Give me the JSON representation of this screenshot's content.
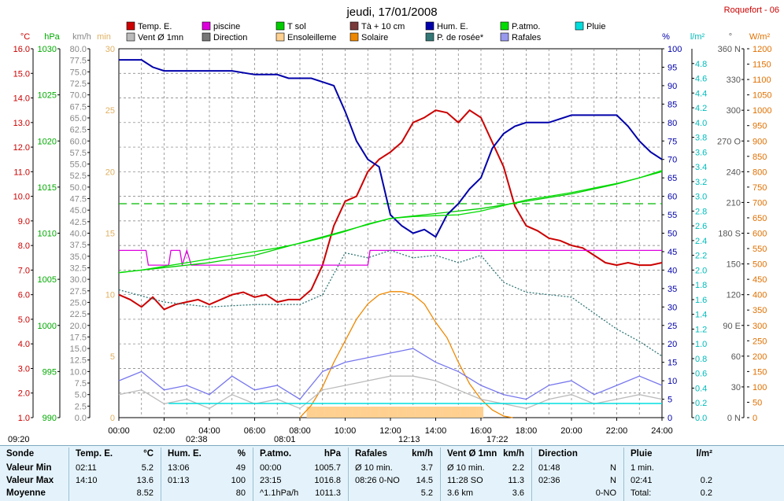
{
  "header": {
    "title": "jeudi, 17/01/2008",
    "station": "Roquefort - 06"
  },
  "axes": {
    "temp": {
      "label": "°C",
      "min": 1,
      "max": 16,
      "step": 1,
      "color": "#cc0000"
    },
    "pressure": {
      "label": "hPa",
      "min": 990,
      "max": 1030,
      "step": 5,
      "color": "#00aa00"
    },
    "wind": {
      "label": "km/h",
      "min": 0,
      "max": 80,
      "step": 2.5,
      "color": "#888888"
    },
    "sun_min": {
      "label": "min",
      "min": 0,
      "max": 30,
      "step": 5,
      "color": "#e0b060"
    },
    "humidity": {
      "label": "%",
      "min": 0,
      "max": 100,
      "step": 5,
      "color": "#0000aa"
    },
    "rain": {
      "label": "l/m²",
      "min": 0,
      "max": 5.0,
      "step": 0.2,
      "color": "#00bbbb"
    },
    "direction": {
      "label": "°",
      "ticks": [
        "0 N",
        "30",
        "60",
        "90 E",
        "120",
        "150",
        "180 S",
        "210",
        "240",
        "270 O",
        "300",
        "330",
        "360 N"
      ]
    },
    "radiation": {
      "label": "W/m²",
      "min": 0,
      "max": 1200,
      "step": 50,
      "color": "#e07000"
    },
    "time": {
      "ticks": [
        "00:00",
        "02:00",
        "04:00",
        "06:00",
        "08:00",
        "10:00",
        "12:00",
        "14:00",
        "16:00",
        "18:00",
        "20:00",
        "22:00",
        "24:00"
      ]
    }
  },
  "legend": [
    {
      "label": "Temp. E.",
      "color": "#cc0000"
    },
    {
      "label": "piscine",
      "color": "#dd00dd"
    },
    {
      "label": "T sol",
      "color": "#00cc00"
    },
    {
      "label": "Tà + 10 cm",
      "color": "#7a3a3a"
    },
    {
      "label": "Hum. E.",
      "color": "#0000aa"
    },
    {
      "label": "P.atmo.",
      "color": "#00dd00"
    },
    {
      "label": "Pluie",
      "color": "#00dddd"
    },
    {
      "label": "Vent Ø 1mn",
      "color": "#bbbbbb"
    },
    {
      "label": "Direction",
      "color": "#777777"
    },
    {
      "label": "Ensoleilleme",
      "color": "#ffd090"
    },
    {
      "label": "Solaire",
      "color": "#ee8800"
    },
    {
      "label": "P. de rosée*",
      "color": "#337777"
    },
    {
      "label": "Rafales",
      "color": "#9999ee"
    }
  ],
  "sun_events": {
    "sunrise": "08:01",
    "noon": "12:13",
    "sunset": "17:22",
    "daylight": "09:20",
    "moonrise": "02:38"
  },
  "chart_data": {
    "type": "line",
    "x_unit": "hours",
    "series": [
      {
        "name": "Temp. E.",
        "axis": "temp",
        "color": "#cc0000",
        "x": [
          0,
          0.5,
          1,
          1.5,
          2,
          2.5,
          3,
          3.5,
          4,
          4.5,
          5,
          5.5,
          6,
          6.5,
          7,
          7.5,
          8,
          8.5,
          9,
          9.5,
          10,
          10.5,
          11,
          11.5,
          12,
          12.5,
          13,
          13.5,
          14,
          14.5,
          15,
          15.5,
          16,
          16.5,
          17,
          17.5,
          18,
          18.5,
          19,
          19.5,
          20,
          20.5,
          21,
          21.5,
          22,
          22.5,
          23,
          23.5,
          24
        ],
        "y": [
          6.0,
          5.8,
          5.5,
          5.9,
          5.4,
          5.6,
          5.7,
          5.8,
          5.6,
          5.8,
          6.0,
          6.1,
          5.9,
          6.0,
          5.7,
          5.8,
          5.8,
          6.2,
          7.2,
          8.8,
          9.8,
          10.0,
          11.0,
          11.5,
          11.8,
          12.2,
          13.0,
          13.2,
          13.5,
          13.4,
          13.0,
          13.5,
          13.2,
          12.2,
          11.2,
          9.6,
          8.8,
          8.6,
          8.3,
          8.2,
          8.0,
          7.9,
          7.6,
          7.3,
          7.2,
          7.3,
          7.2,
          7.2,
          7.3
        ]
      },
      {
        "name": "piscine",
        "axis": "temp",
        "color": "#dd00dd",
        "x": [
          0,
          1,
          1.2,
          1.3,
          2.2,
          2.3,
          2.7,
          2.8,
          3.0,
          3.2,
          11,
          11.1,
          24
        ],
        "y": [
          7.8,
          7.8,
          7.8,
          7.2,
          7.2,
          7.8,
          7.8,
          7.2,
          7.8,
          7.2,
          7.2,
          7.8,
          7.8
        ]
      },
      {
        "name": "T sol",
        "axis": "temp",
        "color": "#00cc00",
        "x": [
          0,
          2,
          4,
          6,
          8,
          10,
          12,
          14,
          16,
          18,
          20,
          22,
          24
        ],
        "y": [
          6.9,
          7.1,
          7.3,
          7.6,
          8.1,
          8.6,
          9.1,
          9.3,
          9.5,
          9.8,
          10.1,
          10.5,
          11.0
        ]
      },
      {
        "name": "Hum. E.",
        "axis": "humidity",
        "color": "#0000aa",
        "x": [
          0,
          1,
          1.5,
          2,
          3,
          4,
          5,
          6,
          7,
          7.5,
          8,
          8.5,
          9,
          9.5,
          10,
          10.5,
          11,
          11.5,
          12,
          12.5,
          13,
          13.5,
          14,
          14.5,
          15,
          15.5,
          16,
          16.5,
          17,
          17.5,
          18,
          19,
          20,
          21,
          22,
          22.5,
          23,
          23.5,
          24
        ],
        "y": [
          97,
          97,
          95,
          94,
          94,
          94,
          94,
          93,
          93,
          92,
          92,
          92,
          91,
          90,
          83,
          75,
          70,
          68,
          55,
          52,
          50,
          51,
          49,
          55,
          58,
          62,
          65,
          73,
          77,
          79,
          80,
          80,
          82,
          82,
          82,
          79,
          75,
          72,
          70
        ]
      },
      {
        "name": "P.atmo.",
        "axis": "pressure",
        "color": "#00dd00",
        "x": [
          0,
          1,
          2,
          3,
          4,
          5,
          6,
          7,
          8,
          9,
          10,
          11,
          12,
          13,
          14,
          15,
          16,
          17,
          18,
          19,
          20,
          21,
          22,
          23,
          24
        ],
        "y": [
          1005.7,
          1006.0,
          1006.4,
          1006.8,
          1007.2,
          1007.6,
          1008.0,
          1008.4,
          1008.9,
          1009.5,
          1010.2,
          1011.0,
          1011.6,
          1011.8,
          1011.9,
          1012.0,
          1012.4,
          1013.0,
          1013.6,
          1014.0,
          1014.4,
          1014.9,
          1015.4,
          1016.0,
          1016.8
        ]
      },
      {
        "name": "Solaire",
        "axis": "radiation",
        "color": "#ee8800",
        "x": [
          8,
          8.5,
          9,
          9.5,
          10,
          10.5,
          11,
          11.5,
          12,
          12.5,
          13,
          13.5,
          14,
          14.5,
          15,
          15.5,
          16,
          16.5,
          17,
          17.4
        ],
        "y": [
          0,
          40,
          100,
          180,
          250,
          320,
          370,
          400,
          410,
          410,
          400,
          370,
          310,
          260,
          180,
          110,
          60,
          25,
          5,
          0
        ]
      },
      {
        "name": "Vent Ø 1mn",
        "axis": "wind",
        "color": "#bbbbbb",
        "x": [
          0,
          1,
          2,
          3,
          4,
          5,
          6,
          7,
          8,
          9,
          10,
          11,
          12,
          13,
          14,
          15,
          16,
          17,
          18,
          19,
          20,
          21,
          22,
          23,
          24
        ],
        "y": [
          5,
          6,
          3,
          4,
          2,
          5,
          3,
          4,
          2,
          6,
          7,
          8,
          9,
          9,
          8,
          6,
          4,
          3,
          2,
          4,
          5,
          3,
          4,
          5,
          4
        ]
      },
      {
        "name": "Rafales",
        "axis": "wind",
        "color": "#7777ee",
        "x": [
          0,
          1,
          2,
          3,
          4,
          5,
          6,
          7,
          8,
          9,
          10,
          11,
          12,
          13,
          14,
          15,
          16,
          17,
          18,
          19,
          20,
          21,
          22,
          23,
          24
        ],
        "y": [
          8,
          10,
          6,
          7,
          5,
          9,
          6,
          7,
          4,
          10,
          12,
          13,
          14,
          15,
          12,
          10,
          7,
          5,
          4,
          7,
          8,
          5,
          7,
          9,
          7
        ]
      },
      {
        "name": "P. de rosée*",
        "axis": "temp",
        "color": "#337777",
        "x": [
          0,
          2,
          4,
          6,
          8,
          9,
          10,
          11,
          12,
          13,
          14,
          15,
          16,
          17,
          18,
          20,
          22,
          23,
          24
        ],
        "y": [
          6.2,
          5.7,
          5.5,
          5.6,
          5.6,
          6.0,
          7.7,
          7.5,
          7.8,
          7.5,
          7.6,
          7.3,
          7.6,
          6.5,
          6.1,
          5.9,
          4.6,
          4.1,
          3.5
        ]
      }
    ]
  },
  "summary": {
    "columns": [
      {
        "title": "Sonde",
        "unit": ""
      },
      {
        "title": "Temp. E.",
        "unit": "°C"
      },
      {
        "title": "Hum. E.",
        "unit": "%"
      },
      {
        "title": "P.atmo.",
        "unit": "hPa"
      },
      {
        "title": "Rafales",
        "unit": "km/h"
      },
      {
        "title": "Vent Ø 1mn",
        "unit": "km/h"
      },
      {
        "title": "Direction",
        "unit": ""
      },
      {
        "title": "Pluie",
        "unit": "l/m²"
      }
    ],
    "row_labels": [
      "Valeur Min",
      "Valeur Max",
      "Moyenne"
    ],
    "temp": [
      [
        "02:11",
        "5.2"
      ],
      [
        "14:10",
        "13.6"
      ],
      [
        "",
        "8.52"
      ]
    ],
    "hum": [
      [
        "13:06",
        "49"
      ],
      [
        "01:13",
        "100"
      ],
      [
        "",
        "80"
      ]
    ],
    "patmo": [
      [
        "00:00",
        "1005.7"
      ],
      [
        "23:15",
        "1016.8"
      ],
      [
        "^1.1hPa/h",
        "1011.3"
      ]
    ],
    "rafales": [
      [
        "Ø 10 min.",
        "3.7"
      ],
      [
        "08:26  0-NO",
        "14.5"
      ],
      [
        "",
        "5.2"
      ]
    ],
    "vent": [
      [
        "Ø 10 min.",
        "2.2"
      ],
      [
        "11:28  SO",
        "11.3"
      ],
      [
        "3.6 km",
        "3.6"
      ]
    ],
    "direction": [
      [
        "01:48",
        "N"
      ],
      [
        "02:36",
        "N"
      ],
      [
        "",
        "0-NO"
      ]
    ],
    "pluie": [
      [
        "1 min.",
        ""
      ],
      [
        "02:41",
        "0.2"
      ],
      [
        "Total:",
        "0.2"
      ]
    ]
  }
}
